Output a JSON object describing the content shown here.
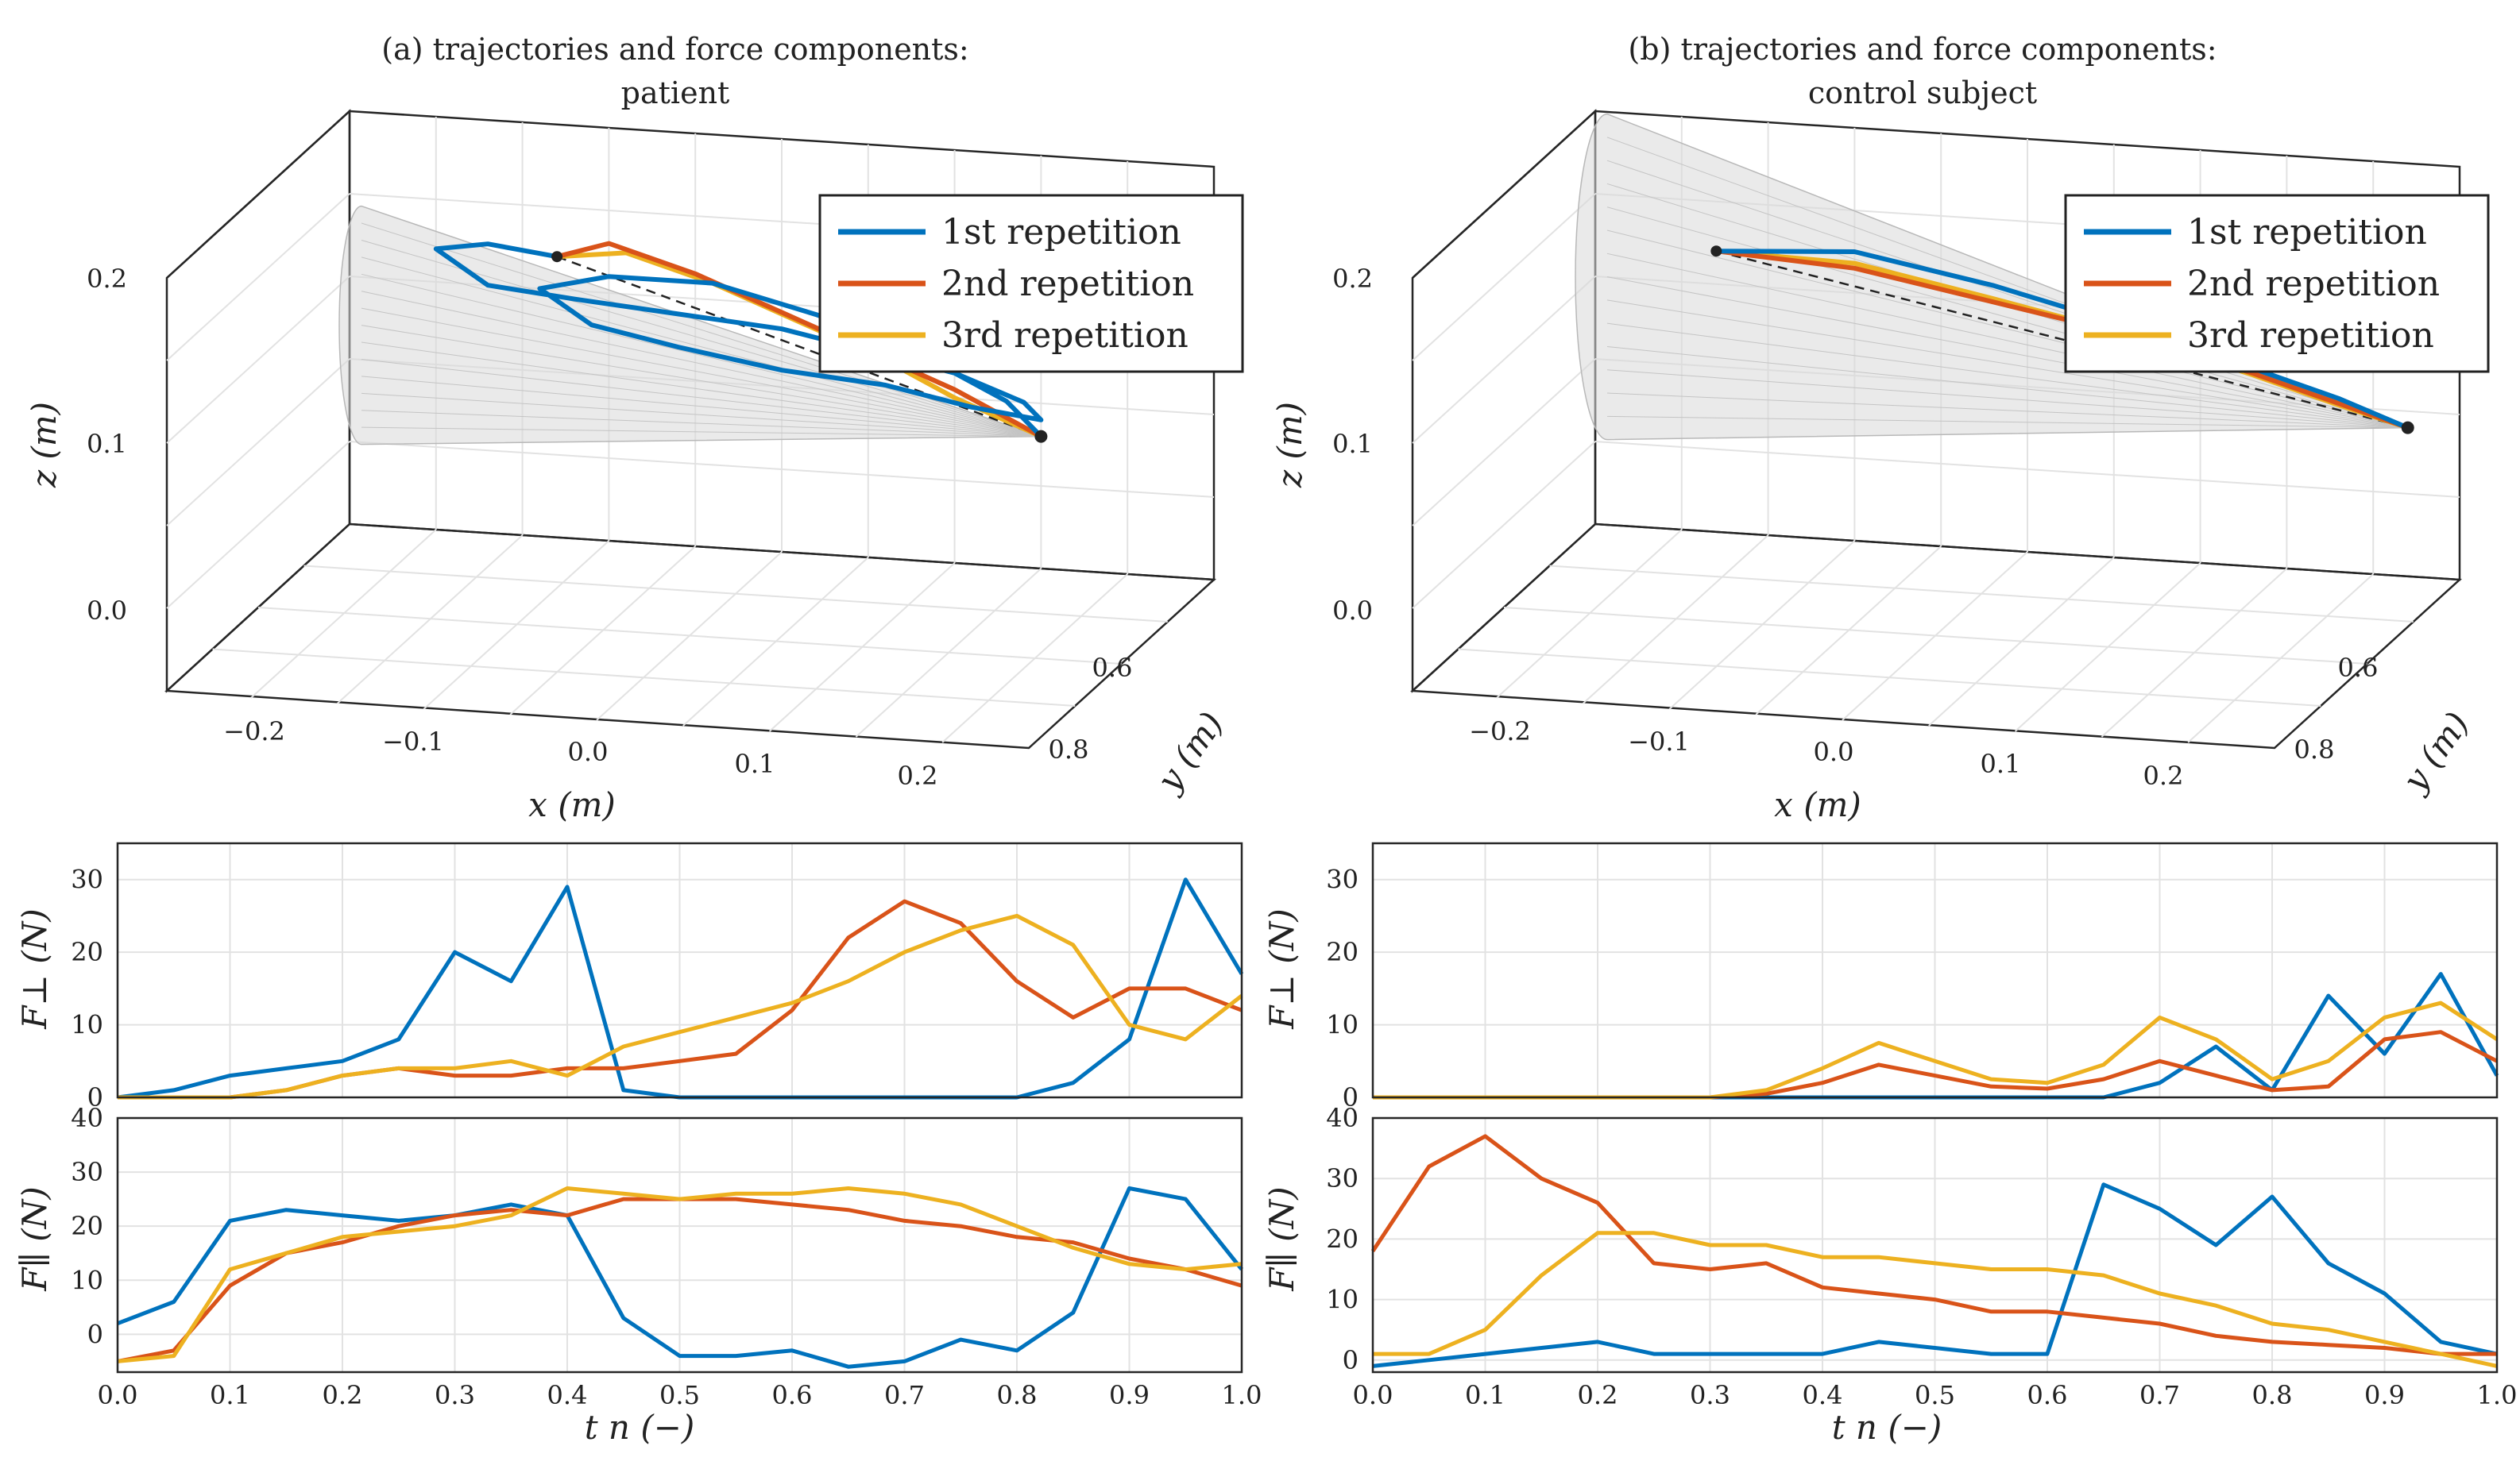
{
  "colors": {
    "rep1": "#0072BD",
    "rep2": "#D95319",
    "rep3": "#EDB120"
  },
  "panel_a": {
    "title_line1": "(a) trajectories and force components:",
    "title_line2": "patient"
  },
  "panel_b": {
    "title_line1": "(b) trajectories and force components:",
    "title_line2": "control subject"
  },
  "legend": [
    "1st repetition",
    "2nd repetition",
    "3rd repetition"
  ],
  "axes3d": {
    "x_label": "x (m)",
    "y_label": "y (m)",
    "z_label": "z (m)",
    "x_ticks": [
      "−0.2",
      "−0.1",
      "0.0",
      "0.1",
      "0.2"
    ],
    "y_ticks": [
      "0.6",
      "0.8"
    ],
    "z_ticks": [
      "0.2",
      "0.1",
      "0.0"
    ]
  },
  "force_axes": {
    "fperp_label": "F⊥ (N)",
    "fpar_label": "F∥ (N)",
    "t_label": "t n (−)",
    "t_ticks": [
      "0.0",
      "0.1",
      "0.2",
      "0.3",
      "0.4",
      "0.5",
      "0.6",
      "0.7",
      "0.8",
      "0.9",
      "1.0"
    ],
    "fperp_ticks": [
      "0",
      "10",
      "20",
      "30"
    ],
    "fpar_ticks": [
      "0",
      "10",
      "20",
      "30",
      "40"
    ]
  },
  "chart_data": [
    {
      "id": "a_3d",
      "type": "line",
      "title": "(a) trajectories and force components: patient",
      "xlabel": "x (m)",
      "ylabel": "y (m)",
      "zlabel": "z (m)",
      "xlim": [
        -0.25,
        0.25
      ],
      "ylim": [
        0.5,
        0.8
      ],
      "zlim": [
        -0.05,
        0.2
      ],
      "start": [
        -0.13,
        0.12
      ],
      "end": [
        0.15,
        0.03
      ],
      "series": [
        {
          "name": "1st repetition",
          "x": [
            -0.13,
            -0.17,
            -0.2,
            -0.17,
            -0.12,
            -0.06,
            0.0,
            0.05,
            0.1,
            0.14,
            0.15,
            0.11,
            0.06,
            0.0,
            -0.06,
            -0.11,
            -0.14,
            -0.1,
            -0.04,
            0.02,
            0.08,
            0.13,
            0.15
          ],
          "z": [
            0.12,
            0.125,
            0.12,
            0.1,
            0.095,
            0.09,
            0.085,
            0.075,
            0.065,
            0.05,
            0.04,
            0.045,
            0.055,
            0.06,
            0.07,
            0.08,
            0.1,
            0.11,
            0.11,
            0.095,
            0.075,
            0.05,
            0.03
          ]
        },
        {
          "name": "2nd repetition",
          "x": [
            -0.13,
            -0.1,
            -0.05,
            0.0,
            0.05,
            0.1,
            0.13,
            0.15
          ],
          "z": [
            0.12,
            0.13,
            0.115,
            0.095,
            0.075,
            0.055,
            0.04,
            0.03
          ]
        },
        {
          "name": "3rd repetition",
          "x": [
            -0.13,
            -0.09,
            -0.04,
            0.01,
            0.06,
            0.1,
            0.13,
            0.15
          ],
          "z": [
            0.12,
            0.125,
            0.11,
            0.09,
            0.07,
            0.05,
            0.038,
            0.03
          ]
        }
      ]
    },
    {
      "id": "b_3d",
      "type": "line",
      "title": "(b) trajectories and force components: control subject",
      "xlabel": "x (m)",
      "ylabel": "y (m)",
      "zlabel": "z (m)",
      "xlim": [
        -0.25,
        0.25
      ],
      "ylim": [
        0.5,
        0.8
      ],
      "zlim": [
        -0.05,
        0.2
      ],
      "start": [
        -0.18,
        0.12
      ],
      "end": [
        0.22,
        0.04
      ],
      "series": [
        {
          "name": "1st repetition",
          "x": [
            -0.18,
            -0.1,
            -0.02,
            0.06,
            0.13,
            0.18,
            0.22
          ],
          "z": [
            0.12,
            0.125,
            0.11,
            0.09,
            0.07,
            0.055,
            0.04
          ]
        },
        {
          "name": "2nd repetition",
          "x": [
            -0.18,
            -0.1,
            -0.02,
            0.06,
            0.13,
            0.18,
            0.22
          ],
          "z": [
            0.12,
            0.115,
            0.1,
            0.085,
            0.067,
            0.052,
            0.04
          ]
        },
        {
          "name": "3rd repetition",
          "x": [
            -0.18,
            -0.1,
            -0.02,
            0.06,
            0.13,
            0.18,
            0.22
          ],
          "z": [
            0.12,
            0.118,
            0.102,
            0.085,
            0.066,
            0.051,
            0.04
          ]
        }
      ]
    },
    {
      "id": "a_fperp",
      "type": "line",
      "xlabel": "t n (−)",
      "ylabel": "F⊥ (N)",
      "xlim": [
        0,
        1
      ],
      "ylim": [
        0,
        35
      ],
      "x": [
        0.0,
        0.05,
        0.1,
        0.15,
        0.2,
        0.25,
        0.3,
        0.35,
        0.4,
        0.45,
        0.5,
        0.55,
        0.6,
        0.65,
        0.7,
        0.75,
        0.8,
        0.85,
        0.9,
        0.95,
        1.0
      ],
      "series": [
        {
          "name": "1st repetition",
          "values": [
            0,
            1,
            3,
            4,
            5,
            8,
            20,
            16,
            29,
            1,
            0,
            0,
            0,
            0,
            0,
            0,
            0,
            2,
            8,
            30,
            17
          ]
        },
        {
          "name": "2nd repetition",
          "values": [
            0,
            0,
            0,
            1,
            3,
            4,
            3,
            3,
            4,
            4,
            5,
            6,
            12,
            22,
            27,
            24,
            16,
            11,
            15,
            15,
            12
          ]
        },
        {
          "name": "3rd repetition",
          "values": [
            0,
            0,
            0,
            1,
            3,
            4,
            4,
            5,
            3,
            7,
            9,
            11,
            13,
            16,
            20,
            23,
            25,
            21,
            10,
            8,
            14
          ]
        }
      ]
    },
    {
      "id": "a_fpar",
      "type": "line",
      "xlabel": "t n (−)",
      "ylabel": "F∥ (N)",
      "xlim": [
        0,
        1
      ],
      "ylim": [
        -7,
        40
      ],
      "x": [
        0.0,
        0.05,
        0.1,
        0.15,
        0.2,
        0.25,
        0.3,
        0.35,
        0.4,
        0.45,
        0.5,
        0.55,
        0.6,
        0.65,
        0.7,
        0.75,
        0.8,
        0.85,
        0.9,
        0.95,
        1.0
      ],
      "series": [
        {
          "name": "1st repetition",
          "values": [
            2,
            6,
            21,
            23,
            22,
            21,
            22,
            24,
            22,
            3,
            -4,
            -4,
            -3,
            -6,
            -5,
            -1,
            -3,
            4,
            27,
            25,
            12
          ]
        },
        {
          "name": "2nd repetition",
          "values": [
            -5,
            -3,
            9,
            15,
            17,
            20,
            22,
            23,
            22,
            25,
            25,
            25,
            24,
            23,
            21,
            20,
            18,
            17,
            14,
            12,
            9
          ]
        },
        {
          "name": "3rd repetition",
          "values": [
            -5,
            -4,
            12,
            15,
            18,
            19,
            20,
            22,
            27,
            26,
            25,
            26,
            26,
            27,
            26,
            24,
            20,
            16,
            13,
            12,
            13
          ]
        }
      ]
    },
    {
      "id": "b_fperp",
      "type": "line",
      "xlabel": "t n (−)",
      "ylabel": "F⊥ (N)",
      "xlim": [
        0,
        1
      ],
      "ylim": [
        0,
        35
      ],
      "x": [
        0.0,
        0.05,
        0.1,
        0.15,
        0.2,
        0.25,
        0.3,
        0.35,
        0.4,
        0.45,
        0.5,
        0.55,
        0.6,
        0.65,
        0.7,
        0.75,
        0.8,
        0.85,
        0.9,
        0.95,
        1.0
      ],
      "series": [
        {
          "name": "1st repetition",
          "values": [
            0,
            0,
            0,
            0,
            0,
            0,
            0,
            0,
            0,
            0,
            0,
            0,
            0,
            0,
            2,
            7,
            1,
            14,
            6,
            17,
            3
          ]
        },
        {
          "name": "2nd repetition",
          "values": [
            0,
            0,
            0,
            0,
            0,
            0,
            0,
            0.5,
            2,
            4.5,
            3,
            1.5,
            1.2,
            2.5,
            5,
            3,
            1,
            1.5,
            8,
            9,
            5
          ]
        },
        {
          "name": "3rd repetition",
          "values": [
            0,
            0,
            0,
            0,
            0,
            0,
            0,
            1,
            4,
            7.5,
            5,
            2.5,
            2,
            4.5,
            11,
            8,
            2.5,
            5,
            11,
            13,
            8
          ]
        }
      ]
    },
    {
      "id": "b_fpar",
      "type": "line",
      "xlabel": "t n (−)",
      "ylabel": "F∥ (N)",
      "xlim": [
        0,
        1
      ],
      "ylim": [
        -2,
        40
      ],
      "x": [
        0.0,
        0.05,
        0.1,
        0.15,
        0.2,
        0.25,
        0.3,
        0.35,
        0.4,
        0.45,
        0.5,
        0.55,
        0.6,
        0.65,
        0.7,
        0.75,
        0.8,
        0.85,
        0.9,
        0.95,
        1.0
      ],
      "series": [
        {
          "name": "1st repetition",
          "values": [
            -1,
            0,
            1,
            2,
            3,
            1,
            1,
            1,
            1,
            3,
            2,
            1,
            1,
            29,
            25,
            19,
            27,
            16,
            11,
            3,
            1
          ]
        },
        {
          "name": "2nd repetition",
          "values": [
            18,
            32,
            37,
            30,
            26,
            16,
            15,
            16,
            12,
            11,
            10,
            8,
            8,
            7,
            6,
            4,
            3,
            2.5,
            2,
            1,
            1
          ]
        },
        {
          "name": "3rd repetition",
          "values": [
            1,
            1,
            5,
            14,
            21,
            21,
            19,
            19,
            17,
            17,
            16,
            15,
            15,
            14,
            11,
            9,
            6,
            5,
            3,
            1,
            -1
          ]
        }
      ]
    }
  ]
}
